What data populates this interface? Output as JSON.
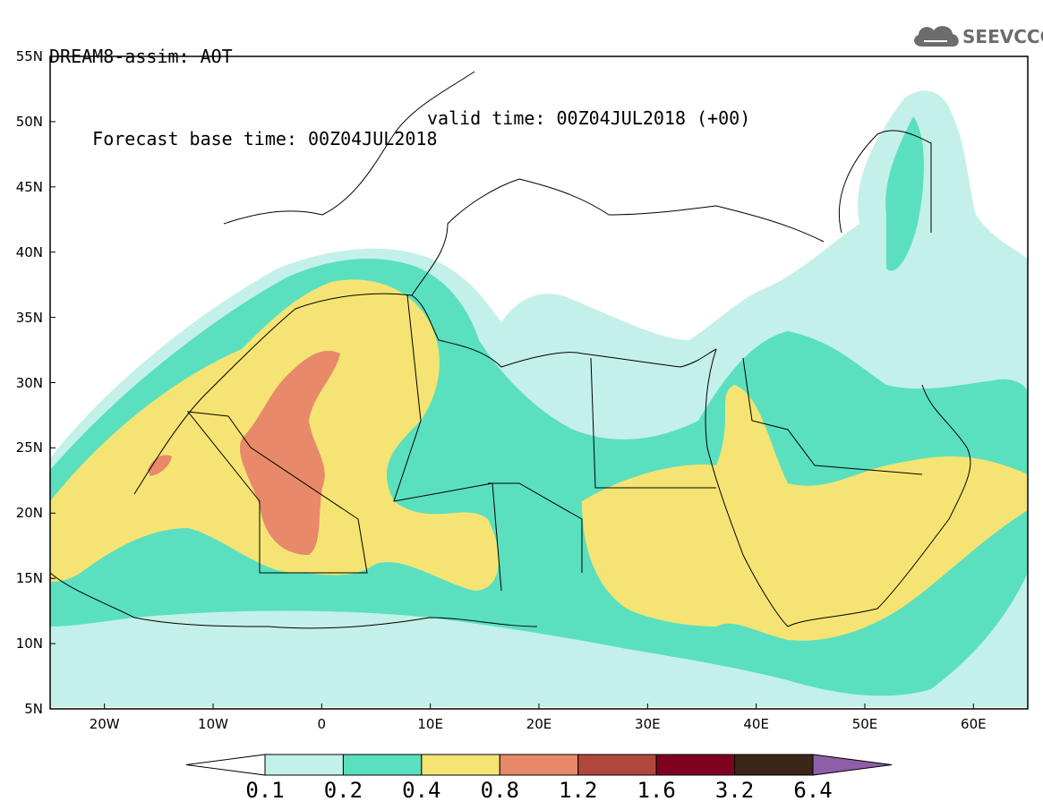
{
  "header": {
    "line1": "DREAM8-assim: AOT",
    "line2_left": "Forecast base time: 00Z04JUL2018",
    "line2_right": "valid time: 00Z04JUL2018 (+00)"
  },
  "logo": {
    "text": "SEEVCCC",
    "icon": "cloud-icon"
  },
  "map": {
    "lon_range": [
      -25,
      65
    ],
    "lat_range": [
      5,
      55
    ],
    "lat_labels": [
      "55N",
      "50N",
      "45N",
      "40N",
      "35N",
      "30N",
      "25N",
      "20N",
      "15N",
      "10N",
      "5N"
    ],
    "lon_labels": [
      "20W",
      "10W",
      "0",
      "10E",
      "20E",
      "30E",
      "40E",
      "50E",
      "60E"
    ]
  },
  "legend": {
    "colors": [
      "#ffffff",
      "#c4f0ea",
      "#5ae0bf",
      "#f5e473",
      "#e8896a",
      "#b0483e",
      "#800020",
      "#3b2617",
      "#8e5fa8"
    ],
    "labels": [
      "0.1",
      "0.2",
      "0.4",
      "0.8",
      "1.2",
      "1.6",
      "3.2",
      "6.4"
    ]
  }
}
